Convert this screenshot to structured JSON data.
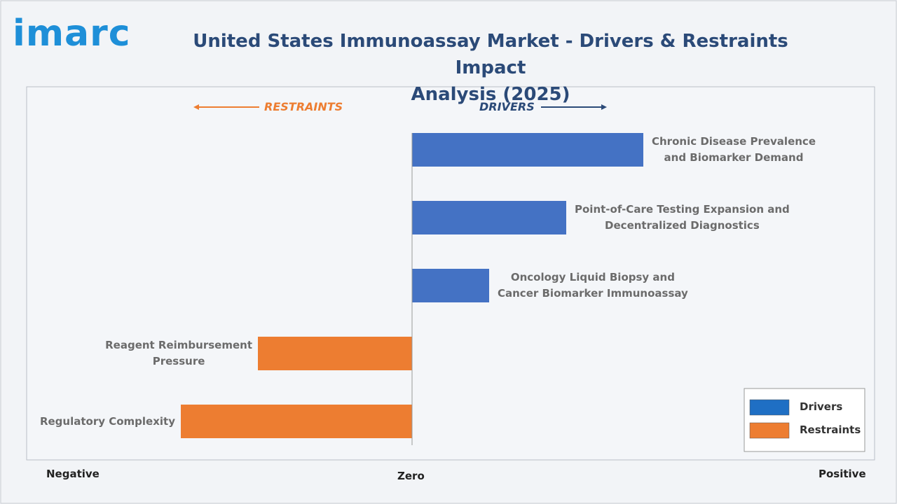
{
  "chart_data": {
    "type": "diverging-bar",
    "logo": "imarc",
    "title": "United States Immunoassay Market - Drivers & Restraints Impact\nAnalysis (2025)",
    "restraints_label": "RESTRAINTS",
    "drivers_label": "DRIVERS",
    "axis_labels": {
      "negative": "Negative",
      "zero": "Zero",
      "positive": "Positive"
    },
    "categories": [
      "Chronic Disease Prevalence\nand Biomarker Demand",
      "Point-of-Care Testing Expansion and\nDecentralized Diagnostics",
      "Oncology Liquid Biopsy and\nCancer Biomarker Immunoassay",
      "Reagent Reimbursement\nPressure",
      "Regulatory Complexity"
    ],
    "series": [
      {
        "name": "Drivers",
        "color": "#4472c4",
        "legend_color": "#1f6fc4",
        "values": [
          3,
          2,
          1,
          null,
          null
        ]
      },
      {
        "name": "Restraints",
        "color": "#ed7d31",
        "legend_color": "#ed7d31",
        "values": [
          null,
          null,
          null,
          -2,
          -3
        ]
      }
    ],
    "xlim": [
      -5,
      6
    ]
  }
}
